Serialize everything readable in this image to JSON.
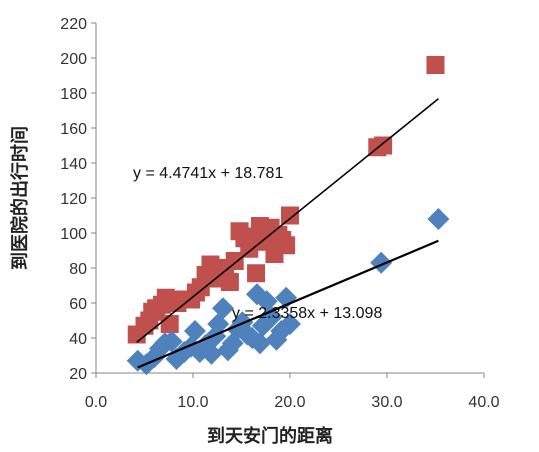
{
  "chart_data": {
    "type": "scatter",
    "title": "",
    "xlabel": "到天安门的距离",
    "ylabel": "到医院的出行时间",
    "xlim": [
      0,
      40
    ],
    "ylim": [
      20,
      220
    ],
    "x_ticks": [
      "0.0",
      "10.0",
      "20.0",
      "30.0",
      "40.0"
    ],
    "y_ticks": [
      "20",
      "40",
      "60",
      "80",
      "100",
      "120",
      "140",
      "160",
      "180",
      "200",
      "220"
    ],
    "grid": false,
    "legend": "none",
    "series": [
      {
        "marker": "square",
        "color": "#c0504d",
        "points": [
          [
            4.2,
            42
          ],
          [
            5.0,
            47
          ],
          [
            5.5,
            50
          ],
          [
            5.8,
            55
          ],
          [
            6.2,
            57
          ],
          [
            6.8,
            59
          ],
          [
            7.2,
            63
          ],
          [
            7.6,
            48
          ],
          [
            8.0,
            62
          ],
          [
            8.4,
            60
          ],
          [
            9.8,
            62
          ],
          [
            10.3,
            66
          ],
          [
            10.8,
            69
          ],
          [
            11.3,
            76
          ],
          [
            11.8,
            82
          ],
          [
            12.3,
            74
          ],
          [
            12.8,
            77
          ],
          [
            13.3,
            80
          ],
          [
            13.8,
            72
          ],
          [
            14.3,
            84
          ],
          [
            14.8,
            101
          ],
          [
            15.3,
            97
          ],
          [
            15.8,
            91
          ],
          [
            16.2,
            98
          ],
          [
            16.5,
            77
          ],
          [
            16.9,
            104
          ],
          [
            17.3,
            102
          ],
          [
            17.6,
            95
          ],
          [
            18.0,
            103
          ],
          [
            18.4,
            88
          ],
          [
            18.8,
            99
          ],
          [
            19.2,
            96
          ],
          [
            19.6,
            93
          ],
          [
            20.0,
            110
          ],
          [
            29.0,
            149
          ],
          [
            29.6,
            150
          ],
          [
            35.0,
            196
          ]
        ],
        "trendline": {
          "equation": "y = 4.4741x + 18.781",
          "slope": 4.4741,
          "intercept": 18.781,
          "x_range": [
            4.2,
            35.3
          ]
        }
      },
      {
        "marker": "diamond",
        "color": "#4f81bd",
        "points": [
          [
            4.3,
            27
          ],
          [
            5.2,
            25
          ],
          [
            6.0,
            29
          ],
          [
            6.6,
            34
          ],
          [
            7.1,
            37
          ],
          [
            7.8,
            38
          ],
          [
            8.3,
            28
          ],
          [
            9.1,
            32
          ],
          [
            9.8,
            35
          ],
          [
            10.2,
            44
          ],
          [
            10.7,
            32
          ],
          [
            11.3,
            36
          ],
          [
            11.9,
            31
          ],
          [
            12.3,
            41
          ],
          [
            12.6,
            48
          ],
          [
            13.1,
            57
          ],
          [
            13.6,
            33
          ],
          [
            14.1,
            37
          ],
          [
            14.6,
            45
          ],
          [
            15.1,
            49
          ],
          [
            15.6,
            42
          ],
          [
            16.1,
            40
          ],
          [
            16.6,
            65
          ],
          [
            16.9,
            37
          ],
          [
            17.2,
            47
          ],
          [
            17.6,
            61
          ],
          [
            18.1,
            52
          ],
          [
            18.6,
            39
          ],
          [
            19.1,
            44
          ],
          [
            19.6,
            63
          ],
          [
            20.0,
            48
          ],
          [
            29.4,
            83
          ],
          [
            35.3,
            108
          ]
        ],
        "trendline": {
          "equation": "y = 2.3358x + 13.098",
          "slope": 2.3358,
          "intercept": 13.098,
          "x_range": [
            4.3,
            35.3
          ]
        }
      }
    ]
  }
}
